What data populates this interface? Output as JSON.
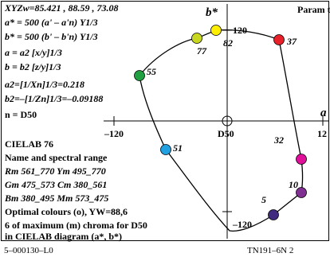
{
  "header": {
    "lines": [
      "XYZw=85.421 , 88.59 , 73.08",
      "a* = 500 (a' – a'n) Y1/3",
      "b* = 500 (b' – b'n) Y1/3",
      "a = a2 [x/y]1/3",
      "b = b2 [z/y]1/3",
      "a2=[1/Xn]1/3=0.218",
      "b2=–[1/Zn]1/3=–0.09188",
      "n = D50"
    ]
  },
  "legend": {
    "lines": [
      "CIELAB 76",
      "Name and spectral range",
      "Rm 561_770  Ym 495_770",
      "Gm 475_573  Cm 380_561",
      "Bm 380_495  Mm 573_475",
      "Optimal colours (o), YW=88,6",
      "6 of maximum (m) chroma for D50",
      "in CIELAB diagram (a*, b*)"
    ]
  },
  "parameter": "Param ter: Y",
  "axes": {
    "a_label": "a",
    "b_label": "b*",
    "x_min": "–120",
    "x_max": "12",
    "origin": "D50",
    "y_max": "120",
    "y_min": "–120"
  },
  "points": [
    {
      "label": "82",
      "color": "#ffee00"
    },
    {
      "label": "77",
      "color": "#c8d820"
    },
    {
      "label": "37",
      "color": "#e8202a"
    },
    {
      "label": "55",
      "color": "#20a040"
    },
    {
      "label": "51",
      "color": "#20a0e0"
    },
    {
      "label": "32",
      "color": "#e0109a"
    },
    {
      "label": "10",
      "color": "#803090"
    },
    {
      "label": "5",
      "color": "#402a80"
    }
  ],
  "footer": {
    "left": "5–000130–L0",
    "right": "TN191–6N 2"
  }
}
